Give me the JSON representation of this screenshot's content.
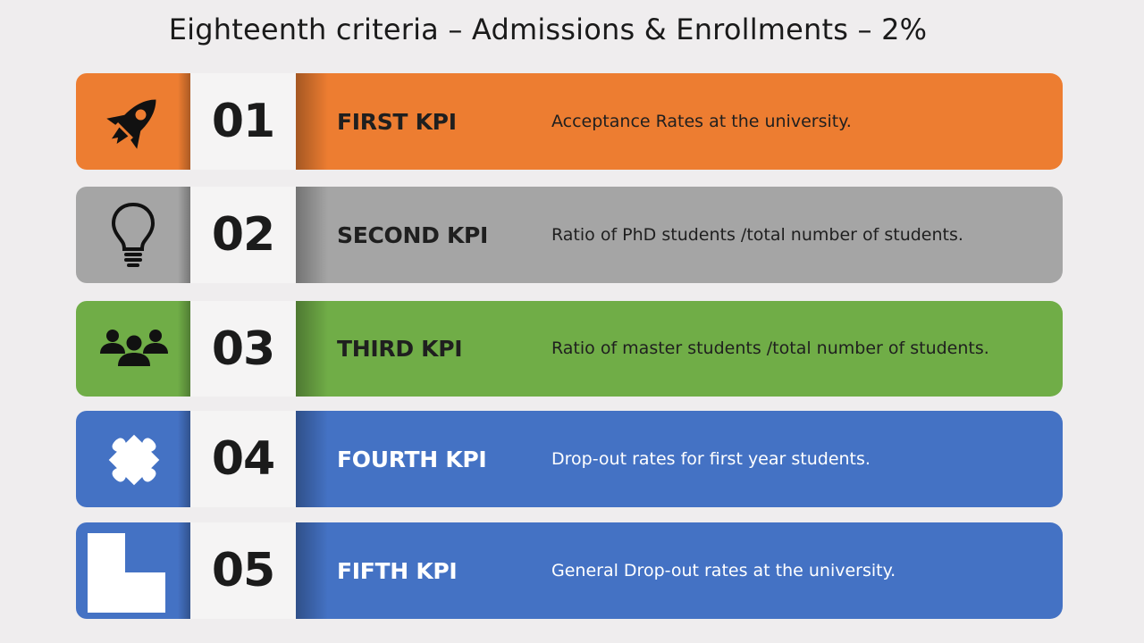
{
  "title": "Eighteenth criteria – Admissions & Enrollments – 2%",
  "rows": [
    {
      "number": "01",
      "kpi": "FIRST KPI",
      "description": "Acceptance Rates at the university.",
      "color": "#ed7d31",
      "icon": "rocket-icon"
    },
    {
      "number": "02",
      "kpi": "SECOND KPI",
      "description": "Ratio of PhD students /total number of students.",
      "color": "#a5a5a5",
      "icon": "lightbulb-icon"
    },
    {
      "number": "03",
      "kpi": "THIRD KPI",
      "description": "Ratio of master students /total number of students.",
      "color": "#70ad47",
      "icon": "people-group-icon"
    },
    {
      "number": "04",
      "kpi": "FOURTH KPI",
      "description": "Drop-out rates for first year students.",
      "color": "#4472c4",
      "icon": "puzzle-piece-icon"
    },
    {
      "number": "05",
      "kpi": "FIFTH KPI",
      "description": "General Drop-out rates at the university.",
      "color": "#4472c4",
      "icon": "l-shape-icon"
    }
  ]
}
